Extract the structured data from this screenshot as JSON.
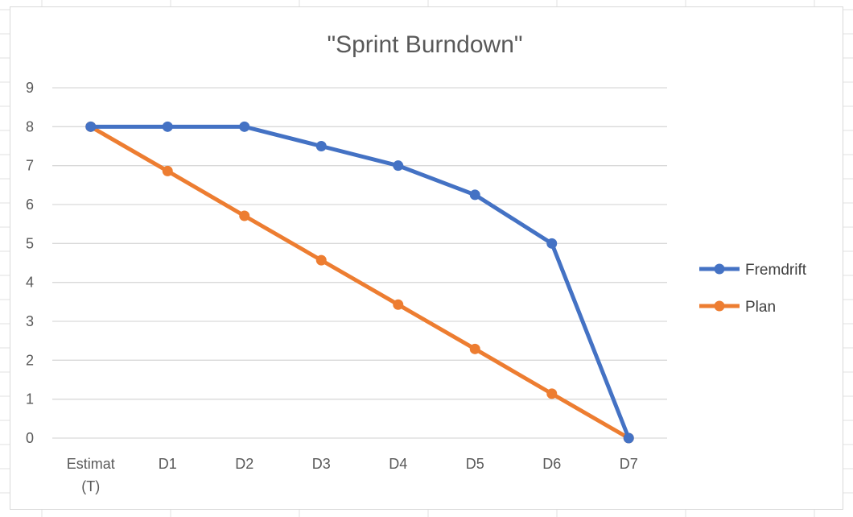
{
  "chart_data": {
    "type": "line",
    "title": "\"Sprint Burndown\"",
    "categories": [
      [
        "Estimat",
        "(T)"
      ],
      [
        "D1"
      ],
      [
        "D2"
      ],
      [
        "D3"
      ],
      [
        "D4"
      ],
      [
        "D5"
      ],
      [
        "D6"
      ],
      [
        "D7"
      ]
    ],
    "y_ticks": [
      "0",
      "1",
      "2",
      "3",
      "4",
      "5",
      "6",
      "7",
      "8",
      "9"
    ],
    "ylim": [
      0,
      9
    ],
    "grid": true,
    "legend_position": "right",
    "series": [
      {
        "name": "Fremdrift",
        "color": "#4472C4",
        "values": [
          8,
          8,
          8,
          7.5,
          7,
          6.25,
          5,
          0
        ]
      },
      {
        "name": "Plan",
        "color": "#ED7D31",
        "values": [
          8,
          6.86,
          5.71,
          4.57,
          3.43,
          2.29,
          1.14,
          0
        ]
      }
    ]
  }
}
